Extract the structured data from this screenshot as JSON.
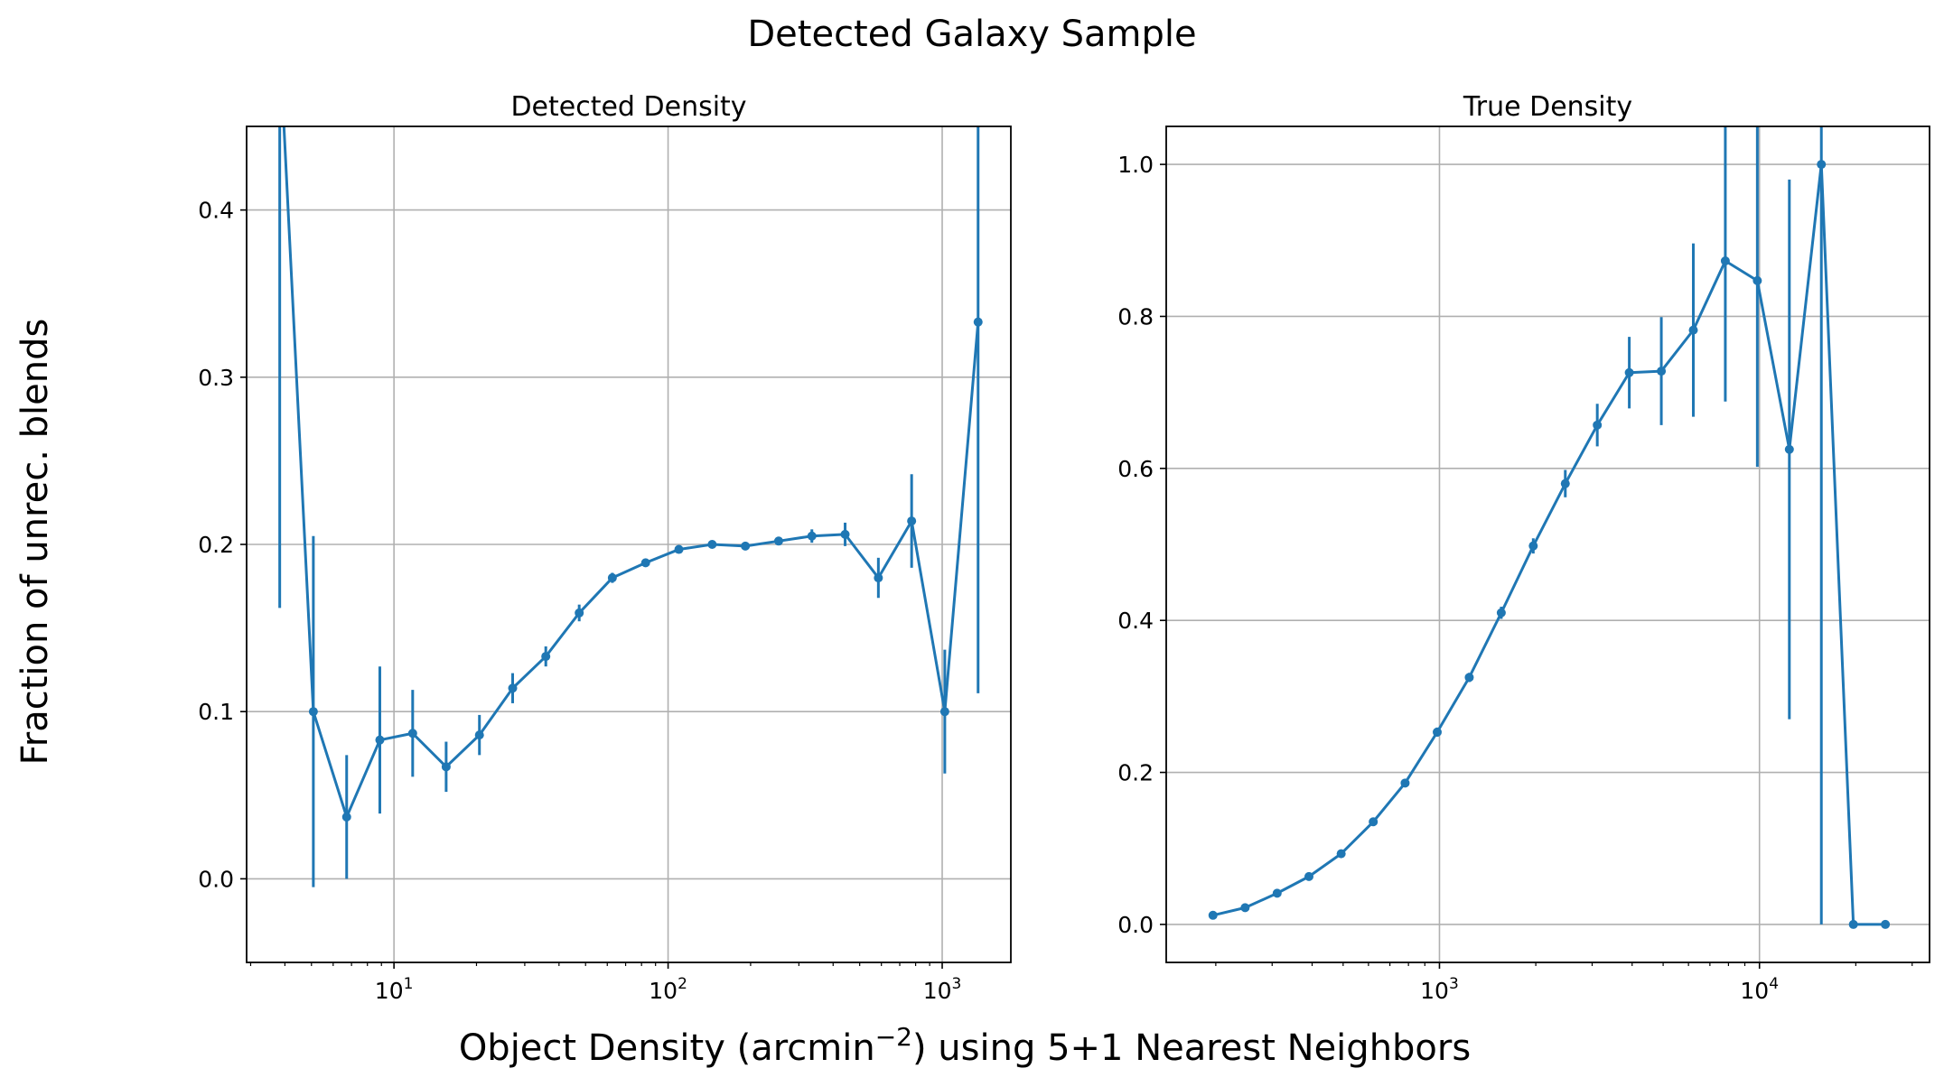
{
  "figure": {
    "suptitle": "Detected Galaxy Sample",
    "ylabel": "Fraction of unrec. blends",
    "xlabel_pre": "Object Density  (arcmin",
    "xlabel_exp": "−2",
    "xlabel_post": ") using 5+1 Nearest Neighbors"
  },
  "colors": {
    "series": "#1f77b4",
    "grid": "#b0b0b0",
    "axes": "#000000"
  },
  "chart_data": [
    {
      "type": "line",
      "title": "Detected Density",
      "xscale": "log",
      "xlim": [
        2.9,
        1780
      ],
      "ylim": [
        -0.05,
        0.45
      ],
      "yticks": [
        0.0,
        0.1,
        0.2,
        0.3,
        0.4
      ],
      "yticklabels": [
        "0.0",
        "0.1",
        "0.2",
        "0.3",
        "0.4"
      ],
      "xticks": [
        10,
        100,
        1000
      ],
      "xtick_bases": [
        "10",
        "10",
        "10"
      ],
      "xtick_exps": [
        "1",
        "2",
        "3"
      ],
      "grid": true,
      "series": [
        {
          "name": "Detected Density",
          "x": [
            3.83,
            5.08,
            6.72,
            8.88,
            11.7,
            15.5,
            20.5,
            27.1,
            35.8,
            47.4,
            62.6,
            82.8,
            109.5,
            144.8,
            191.4,
            253.1,
            334.6,
            442.4,
            585,
            773.5,
            1022,
            1352
          ],
          "y": [
            0.5,
            0.1,
            0.037,
            0.083,
            0.087,
            0.067,
            0.086,
            0.114,
            0.133,
            0.159,
            0.18,
            0.189,
            0.197,
            0.2,
            0.199,
            0.202,
            0.205,
            0.206,
            0.18,
            0.214,
            0.1,
            0.333
          ],
          "err": [
            0.338,
            0.105,
            0.037,
            0.044,
            0.026,
            0.015,
            0.012,
            0.009,
            0.006,
            0.005,
            0.003,
            0.002,
            0.002,
            0.002,
            0.002,
            0.002,
            0.004,
            0.007,
            0.012,
            0.028,
            0.037,
            0.222
          ]
        }
      ]
    },
    {
      "type": "line",
      "title": "True Density",
      "xscale": "log",
      "xlim": [
        140,
        34000
      ],
      "ylim": [
        -0.05,
        1.05
      ],
      "yticks": [
        0.0,
        0.2,
        0.4,
        0.6,
        0.8,
        1.0
      ],
      "yticklabels": [
        "0.0",
        "0.2",
        "0.4",
        "0.6",
        "0.8",
        "1.0"
      ],
      "xticks": [
        1000,
        10000
      ],
      "xtick_bases": [
        "10",
        "10"
      ],
      "xtick_exps": [
        "3",
        "4"
      ],
      "grid": true,
      "series": [
        {
          "name": "True Density",
          "x": [
            196,
            247,
            311,
            391,
            493,
            621,
            781,
            984,
            1239,
            1560,
            1964,
            2473,
            3113,
            3919,
            4935,
            6213,
            7822,
            9848,
            12399,
            15609,
            19652,
            24742
          ],
          "y": [
            0.012,
            0.022,
            0.041,
            0.063,
            0.093,
            0.135,
            0.186,
            0.253,
            0.325,
            0.41,
            0.498,
            0.58,
            0.657,
            0.726,
            0.728,
            0.782,
            0.873,
            0.847,
            0.625,
            1.0,
            0.0,
            0.0
          ],
          "err": [
            0.001,
            0.001,
            0.002,
            0.003,
            0.003,
            0.004,
            0.005,
            0.006,
            0.006,
            0.008,
            0.01,
            0.018,
            0.028,
            0.047,
            0.071,
            0.114,
            0.185,
            0.245,
            0.355,
            1.0,
            0.0,
            0.0
          ]
        }
      ]
    }
  ]
}
